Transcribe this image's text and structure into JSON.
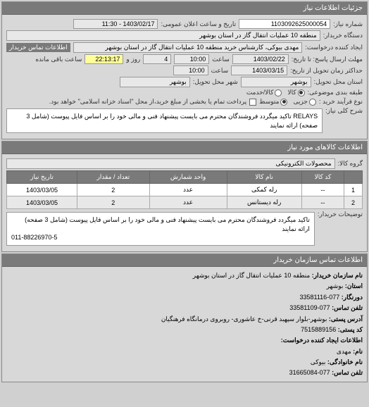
{
  "panels": {
    "details_header": "جزئیات اطلاعات نیاز",
    "goods_header": "اطلاعات کالاهای مورد نیاز",
    "org_header": "اطلاعات تماس سازمان خریدار"
  },
  "labels": {
    "request_no": "شماره نیاز:",
    "public_date": "تاریخ و ساعت اعلان عمومی:",
    "buyer_org": "دستگاه خریدار:",
    "requester": "ایجاد کننده درخواست:",
    "contact_link": "اطلاعات تماس خریدار",
    "deadline": "مهلت ارسال پاسخ: تا تاریخ:",
    "time": "ساعت",
    "days_remain": "روز و",
    "time_remain": "ساعت باقی مانده",
    "delivery_deadline": "حداکثر زمان تحویل از تاریخ:",
    "delivery_province": "استان محل تحویل:",
    "delivery_city": "شهر محل تحویل:",
    "class_need": "طبقه بندی موضوعی:",
    "purchase_type": "نوع فرآیند خرید :",
    "payment_note": "پرداخت تمام یا بخشی از مبلغ خرید،از محل \"اسناد خزانه اسلامی\" خواهد بود.",
    "general_desc": "شرح کلی نیاز:",
    "goods_group": "گروه کالا:",
    "buyer_notes": "توضیحات خریدار:"
  },
  "values": {
    "request_no": "1103092625000054",
    "public_date": "1403/02/17 - 11:30",
    "buyer_org": "منطقه 10 عملیات انتقال گاز در استان بوشهر",
    "requester": "مهدی بیوکی، کارشناس خرید منطقه 10 عملیات انتقال گاز در استان بوشهر",
    "deadline_date": "1403/02/22",
    "deadline_time": "10:00",
    "days_remain": "4",
    "time_remain": "22:13:17",
    "delivery_date": "1403/03/15",
    "delivery_time": "10:00",
    "province": "بوشهر",
    "city": "بوشهر",
    "goods_group": "محصولات الکترونیکی"
  },
  "radios": {
    "class": [
      {
        "label": "کالا",
        "checked": true
      },
      {
        "label": "کالا/خدمت",
        "checked": false
      }
    ],
    "purchase": [
      {
        "label": "جزیی",
        "checked": false
      },
      {
        "label": "متوسط",
        "checked": true
      }
    ]
  },
  "desc": "RELAYS تاکید میگردد فروشندگان محترم می بایست پیشنهاد فنی و مالی خود را بر اساس فایل پیوست (شامل 3 صفحه) ارائه نمایند",
  "buyer_notes": "تاکید میگردد فروشندگان محترم می بایست پیشنهاد فنی و مالی خود را بر اساس فایل پیوست (شامل 3 صفحه) ارائه نمایند",
  "phone_footer": "011-88226970-5",
  "table": {
    "headers": [
      "",
      "کد کالا",
      "نام کالا",
      "واحد شمارش",
      "تعداد / مقدار",
      "تاریخ نیاز"
    ],
    "rows": [
      {
        "n": "1",
        "code": "--",
        "name": "رله کمکی",
        "unit": "عدد",
        "qty": "2",
        "date": "1403/03/05"
      },
      {
        "n": "2",
        "code": "--",
        "name": "رله دیستانس",
        "unit": "عدد",
        "qty": "2",
        "date": "1403/03/05"
      }
    ]
  },
  "org": {
    "name_label": "نام سازمان خریدار:",
    "name": "منطقه 10 عملیات انتقال گاز در استان بوشهر",
    "province_label": "استان:",
    "province": "بوشهر",
    "phone_label": "دورنگار:",
    "phone": "077-33581116",
    "fax_label": "تلفن تماس:",
    "fax": "077-33581109",
    "address_label": "آدرس پستی:",
    "address": "بوشهر-بلوار سپهبد قرنی-خ عاشوری- روبروی درمانگاه فرهنگیان",
    "postal_label": "کد پستی:",
    "postal": "7515889156",
    "creator_label": "اطلاعات ایجاد کننده درخواست:",
    "fname_label": "نام:",
    "fname": "مهدی",
    "lname_label": "نام خانوادگی:",
    "lname": "بیوکی",
    "tel_label": "تلفن تماس:",
    "tel": "077-31665084"
  }
}
